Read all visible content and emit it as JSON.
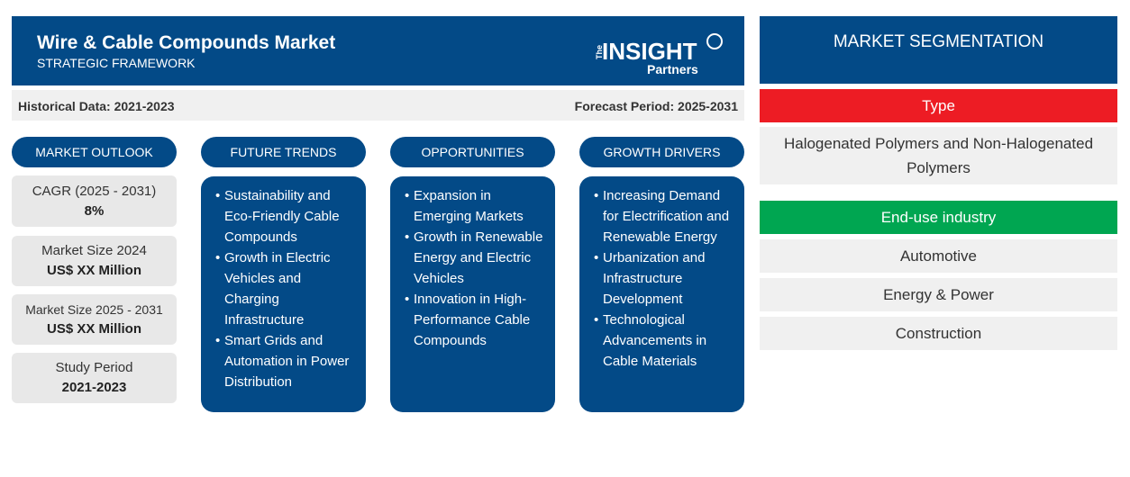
{
  "header": {
    "title": "Wire & Cable Compounds Market",
    "subtitle": "STRATEGIC FRAMEWORK",
    "logo_text": "The INSIGHT Partners"
  },
  "periods": {
    "historical": "Historical Data: 2021-2023",
    "forecast": "Forecast Period: 2025-2031"
  },
  "columns": [
    {
      "label": "MARKET OUTLOOK"
    },
    {
      "label": "FUTURE TRENDS",
      "items": [
        "Sustainability and Eco-Friendly Cable Compounds",
        "Growth in Electric Vehicles and Charging Infrastructure",
        "Smart Grids and Automation in Power Distribution"
      ]
    },
    {
      "label": "OPPORTUNITIES",
      "items": [
        "Expansion in Emerging Markets",
        "Growth in Renewable Energy and Electric Vehicles",
        "Innovation in High-Performance Cable Compounds"
      ]
    },
    {
      "label": "GROWTH DRIVERS",
      "items": [
        "Increasing Demand for Electrification and Renewable Energy",
        "Urbanization and Infrastructure Development",
        "Technological Advancements in Cable Materials"
      ]
    }
  ],
  "outlook": [
    {
      "label": "CAGR (2025 - 2031)",
      "value": "8%"
    },
    {
      "label": "Market Size 2024",
      "value": "US$ XX Million"
    },
    {
      "label": "Market Size 2025 - 2031",
      "value": "US$ XX Million"
    },
    {
      "label": "Study Period",
      "value": "2021-2023"
    }
  ],
  "segmentation": {
    "title": "MARKET SEGMENTATION",
    "type": {
      "label": "Type",
      "color": "#ed1c24",
      "items": [
        "Halogenated Polymers and Non-Halogenated Polymers"
      ]
    },
    "end_use": {
      "label": "End-use industry",
      "color": "#00a651",
      "items": [
        "Automotive",
        "Energy & Power",
        "Construction"
      ]
    }
  }
}
